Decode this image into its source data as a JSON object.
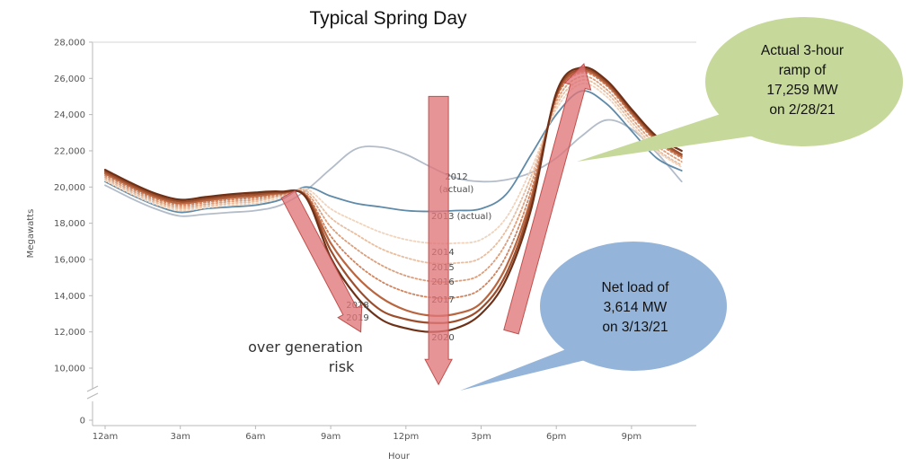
{
  "chart_data": {
    "type": "line",
    "title": "Typical Spring Day",
    "xlabel": "Hour",
    "ylabel": "Megawatts",
    "x": [
      0,
      1,
      2,
      3,
      4,
      5,
      6,
      7,
      8,
      9,
      10,
      11,
      12,
      13,
      14,
      15,
      16,
      17,
      18,
      19,
      20,
      21,
      22,
      23
    ],
    "x_ticks": [
      {
        "x": 0,
        "label": "12am"
      },
      {
        "x": 3,
        "label": "3am"
      },
      {
        "x": 6,
        "label": "6am"
      },
      {
        "x": 9,
        "label": "9am"
      },
      {
        "x": 12,
        "label": "12pm"
      },
      {
        "x": 15,
        "label": "3pm"
      },
      {
        "x": 18,
        "label": "6pm"
      },
      {
        "x": 21,
        "label": "9pm"
      }
    ],
    "y_ticks": [
      {
        "y": 0,
        "label": "0"
      },
      {
        "y": 10000,
        "label": "10,000"
      },
      {
        "y": 12000,
        "label": "12,000"
      },
      {
        "y": 14000,
        "label": "14,000"
      },
      {
        "y": 16000,
        "label": "16,000"
      },
      {
        "y": 18000,
        "label": "18,000"
      },
      {
        "y": 20000,
        "label": "20,000"
      },
      {
        "y": 22000,
        "label": "22,000"
      },
      {
        "y": 24000,
        "label": "24,000"
      },
      {
        "y": 26000,
        "label": "26,000"
      },
      {
        "y": 28000,
        "label": "28,000"
      }
    ],
    "ylim": [
      9000,
      28000
    ],
    "axis_break": true,
    "grid": false,
    "series": [
      {
        "name": "2012 (actual)",
        "color": "#b3bcc9",
        "values": [
          20100,
          19400,
          18800,
          18400,
          18500,
          18600,
          18700,
          19000,
          19800,
          21000,
          22100,
          22200,
          21800,
          21100,
          20500,
          20300,
          20400,
          20800,
          21600,
          22800,
          23700,
          23200,
          21900,
          20300
        ]
      },
      {
        "name": "2013 (actual)",
        "color": "#5f8aa8",
        "values": [
          20300,
          19600,
          19000,
          18600,
          18800,
          18900,
          19000,
          19300,
          20000,
          19500,
          19100,
          18900,
          18700,
          18650,
          18700,
          18800,
          19600,
          21800,
          24000,
          25300,
          24600,
          23100,
          21600,
          20900
        ]
      },
      {
        "name": "2014",
        "color": "#f0d4bd",
        "values": [
          20350,
          19650,
          19050,
          18700,
          18850,
          19000,
          19100,
          19400,
          19900,
          18800,
          18100,
          17500,
          17100,
          16900,
          16900,
          17100,
          18300,
          21000,
          24300,
          25700,
          25000,
          23400,
          22000,
          21100
        ]
      },
      {
        "name": "2015",
        "color": "#e8bea0",
        "values": [
          20450,
          19750,
          19150,
          18800,
          18950,
          19100,
          19200,
          19500,
          19800,
          18300,
          17400,
          16600,
          16100,
          15800,
          15800,
          16100,
          17600,
          20600,
          24500,
          25900,
          25200,
          23600,
          22100,
          21200
        ]
      },
      {
        "name": "2016",
        "color": "#dc9f7d",
        "values": [
          20550,
          19850,
          19250,
          18900,
          19050,
          19200,
          19300,
          19550,
          19700,
          17800,
          16600,
          15700,
          15100,
          14800,
          14800,
          15200,
          16900,
          20200,
          24700,
          26100,
          25400,
          23800,
          22300,
          21400
        ]
      },
      {
        "name": "2017",
        "color": "#cf845f",
        "values": [
          20650,
          19950,
          19350,
          19000,
          19150,
          19300,
          19400,
          19600,
          19600,
          17300,
          15800,
          14800,
          14200,
          13900,
          13900,
          14400,
          16200,
          19800,
          24900,
          26300,
          25600,
          24000,
          22500,
          21600
        ]
      },
      {
        "name": "2018",
        "color": "#b96640",
        "values": [
          20750,
          20050,
          19450,
          19100,
          19250,
          19400,
          19500,
          19650,
          19550,
          16900,
          15100,
          13900,
          13200,
          12900,
          13000,
          13600,
          15600,
          19400,
          25000,
          26400,
          25700,
          24100,
          22600,
          21700
        ]
      },
      {
        "name": "2019",
        "color": "#9c4d2c",
        "values": [
          20850,
          20150,
          19550,
          19200,
          19350,
          19500,
          19600,
          19700,
          19500,
          16500,
          14500,
          13200,
          12700,
          12500,
          12600,
          13300,
          15200,
          19100,
          25100,
          26500,
          25800,
          24200,
          22700,
          21800
        ]
      },
      {
        "name": "2020",
        "color": "#6e3118",
        "values": [
          20950,
          20250,
          19650,
          19300,
          19450,
          19600,
          19700,
          19750,
          19450,
          16100,
          14000,
          12700,
          12200,
          12000,
          12200,
          13000,
          14900,
          18800,
          25200,
          26600,
          25900,
          24300,
          22800,
          22000
        ]
      }
    ],
    "series_labels": [
      {
        "text": "2012",
        "series": 0
      },
      {
        "text": "(actual)",
        "series": 0
      },
      {
        "text": "2013 (actual)",
        "series": 1
      },
      {
        "text": "2014",
        "series": 2
      },
      {
        "text": "2015",
        "series": 3
      },
      {
        "text": "2016",
        "series": 4
      },
      {
        "text": "2017",
        "series": 5
      },
      {
        "text": "2018",
        "series": 6
      },
      {
        "text": "2019",
        "series": 7
      },
      {
        "text": "2020",
        "series": 8
      }
    ],
    "annotations": {
      "risk_text": [
        "over generation",
        "risk"
      ],
      "ramp_bubble": [
        "Actual 3-hour",
        "ramp of",
        "17,259 MW",
        "on 2/28/21"
      ],
      "net_load_bubble": [
        "Net load of",
        "3,614 MW",
        "on 3/13/21"
      ],
      "arrows": [
        {
          "name": "morning-down-arrow",
          "from": [
            7.3,
            19600
          ],
          "to": [
            10.2,
            12000
          ]
        },
        {
          "name": "midday-down-arrow",
          "from": [
            13.3,
            25000
          ],
          "to": [
            13.3,
            9100
          ]
        },
        {
          "name": "evening-up-arrow",
          "from": [
            16.2,
            12000
          ],
          "to": [
            19.1,
            26800
          ]
        }
      ]
    },
    "colors": {
      "arrow_fill": "#e0767a",
      "arrow_stroke": "#c0504d",
      "bubble_green": "#c6d99a",
      "bubble_blue": "#95b4d9",
      "axis": "#b8b8b8"
    }
  }
}
